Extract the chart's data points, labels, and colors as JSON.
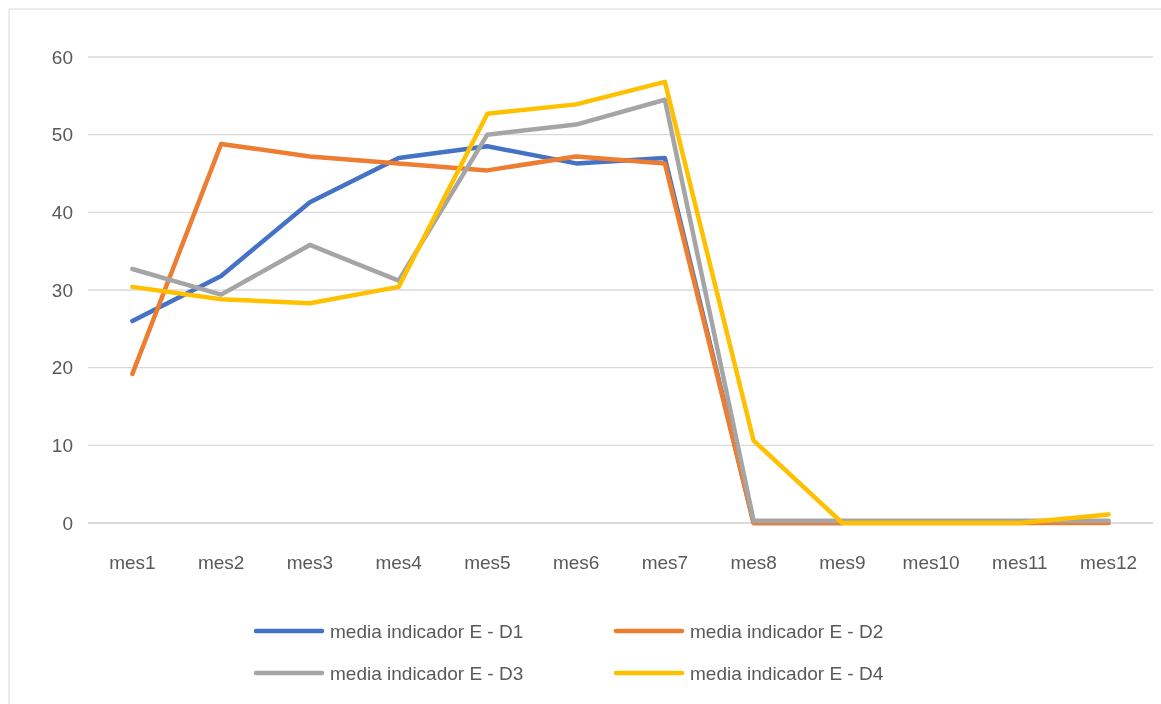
{
  "chart_data": {
    "type": "line",
    "categories": [
      "mes1",
      "mes2",
      "mes3",
      "mes4",
      "mes5",
      "mes6",
      "mes7",
      "mes8",
      "mes9",
      "mes10",
      "mes11",
      "mes12"
    ],
    "series": [
      {
        "name": "media indicador E - D1",
        "color": "#4472c4",
        "values": [
          26,
          31.8,
          41.3,
          47,
          48.5,
          46.3,
          47,
          0,
          0,
          null,
          null,
          null
        ]
      },
      {
        "name": "media indicador E - D2",
        "color": "#ed7d31",
        "values": [
          19.2,
          48.8,
          47.2,
          46.3,
          45.4,
          47.2,
          46.3,
          0,
          0,
          0,
          0,
          0
        ]
      },
      {
        "name": "media indicador E - D3",
        "color": "#a5a5a5",
        "values": [
          32.7,
          29.4,
          35.8,
          31.2,
          50,
          51.3,
          54.5,
          0.3,
          0.3,
          0.3,
          0.3,
          0.3
        ]
      },
      {
        "name": "media indicador E - D4",
        "color": "#ffc000",
        "values": [
          30.4,
          28.8,
          28.3,
          30.4,
          52.7,
          53.9,
          56.8,
          10.6,
          0,
          0,
          0,
          1.1
        ]
      }
    ],
    "ylim": [
      0,
      60
    ],
    "yticks": [
      0,
      10,
      20,
      30,
      40,
      50,
      60
    ],
    "grid": "y",
    "legend": "bottom",
    "marker": "none",
    "line_style": "solid"
  }
}
